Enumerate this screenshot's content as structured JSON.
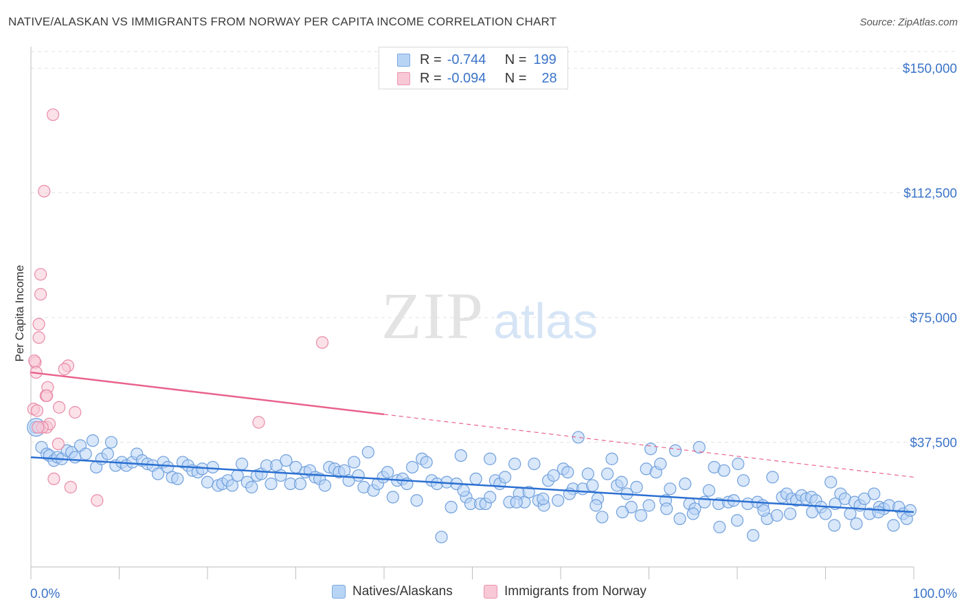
{
  "header": {
    "title": "NATIVE/ALASKAN VS IMMIGRANTS FROM NORWAY PER CAPITA INCOME CORRELATION CHART",
    "source": "Source: ZipAtlas.com"
  },
  "watermark": {
    "zip": "ZIP",
    "atlas": "atlas"
  },
  "stats": {
    "rows": [
      {
        "r_label": "R =",
        "r_value": "-0.744",
        "n_label": "N =",
        "n_value": "199"
      },
      {
        "r_label": "R =",
        "r_value": "-0.094",
        "n_label": "N =",
        "n_value": "28"
      }
    ]
  },
  "legend": {
    "items": [
      "Natives/Alaskans",
      "Immigrants from Norway"
    ]
  },
  "colors": {
    "blue_fill": "#b8d4f5",
    "blue_stroke": "#6f9fdc",
    "blue_line": "#2a6fd1",
    "pink_fill": "#f8c8d6",
    "pink_stroke": "#e98aa8",
    "pink_line": "#e8628c",
    "tick_label": "#3a73c8",
    "grid": "#e2e2e2"
  },
  "chart_data": {
    "type": "scatter",
    "title": "NATIVE/ALASKAN VS IMMIGRANTS FROM NORWAY PER CAPITA INCOME CORRELATION CHART",
    "xlabel": "",
    "ylabel": "Per Capita Income",
    "xlim": [
      0,
      100
    ],
    "ylim": [
      0,
      155000
    ],
    "x_tick_labels": [
      "0.0%",
      "100.0%"
    ],
    "y_ticks": [
      37500,
      75000,
      112500,
      150000
    ],
    "y_tick_labels": [
      "$37,500",
      "$75,000",
      "$112,500",
      "$150,000"
    ],
    "grid": true,
    "legend_position": "bottom",
    "series": [
      {
        "name": "Natives/Alaskans",
        "trend": {
          "x": [
            0,
            100
          ],
          "y": [
            33000,
            16500
          ],
          "dashed_from": null
        },
        "points": [
          [
            0.5,
            42000
          ],
          [
            1.2,
            36000
          ],
          [
            1.8,
            34000
          ],
          [
            2.1,
            33500
          ],
          [
            2.6,
            32000
          ],
          [
            3.0,
            33000
          ],
          [
            3.5,
            32500
          ],
          [
            4.1,
            35000
          ],
          [
            4.6,
            34500
          ],
          [
            5.0,
            33000
          ],
          [
            5.6,
            36500
          ],
          [
            6.2,
            34000
          ],
          [
            7.0,
            38000
          ],
          [
            7.4,
            30000
          ],
          [
            8.0,
            32500
          ],
          [
            8.7,
            34000
          ],
          [
            9.1,
            37500
          ],
          [
            9.6,
            30500
          ],
          [
            10.3,
            31500
          ],
          [
            10.8,
            30500
          ],
          [
            11.5,
            31500
          ],
          [
            12.0,
            34000
          ],
          [
            12.6,
            32000
          ],
          [
            13.2,
            31000
          ],
          [
            13.8,
            30500
          ],
          [
            14.4,
            28000
          ],
          [
            15.0,
            31500
          ],
          [
            15.5,
            30000
          ],
          [
            16.0,
            27000
          ],
          [
            16.6,
            26500
          ],
          [
            17.2,
            31500
          ],
          [
            17.8,
            30500
          ],
          [
            18.3,
            29000
          ],
          [
            18.9,
            28500
          ],
          [
            19.4,
            29500
          ],
          [
            20.0,
            25500
          ],
          [
            20.6,
            30000
          ],
          [
            21.2,
            24500
          ],
          [
            21.7,
            25000
          ],
          [
            22.3,
            26000
          ],
          [
            22.8,
            24500
          ],
          [
            23.4,
            27500
          ],
          [
            23.9,
            31000
          ],
          [
            24.5,
            25500
          ],
          [
            25.0,
            24000
          ],
          [
            25.6,
            27500
          ],
          [
            26.1,
            28000
          ],
          [
            26.7,
            30500
          ],
          [
            27.2,
            25000
          ],
          [
            27.8,
            30500
          ],
          [
            28.3,
            27500
          ],
          [
            28.9,
            32000
          ],
          [
            29.4,
            25000
          ],
          [
            30.0,
            30000
          ],
          [
            30.5,
            25000
          ],
          [
            31.1,
            28500
          ],
          [
            31.6,
            29000
          ],
          [
            32.2,
            27000
          ],
          [
            32.7,
            26500
          ],
          [
            33.3,
            24500
          ],
          [
            33.8,
            30000
          ],
          [
            34.4,
            29500
          ],
          [
            34.9,
            28500
          ],
          [
            35.5,
            29000
          ],
          [
            36.0,
            26000
          ],
          [
            36.6,
            31500
          ],
          [
            37.1,
            27500
          ],
          [
            37.7,
            24000
          ],
          [
            38.2,
            34500
          ],
          [
            38.8,
            23000
          ],
          [
            39.3,
            25000
          ],
          [
            39.9,
            27000
          ],
          [
            40.4,
            28500
          ],
          [
            41.0,
            21000
          ],
          [
            41.5,
            26000
          ],
          [
            42.1,
            26500
          ],
          [
            42.6,
            25000
          ],
          [
            43.2,
            30000
          ],
          [
            43.7,
            20000
          ],
          [
            44.3,
            32500
          ],
          [
            44.8,
            31500
          ],
          [
            45.4,
            26000
          ],
          [
            46.0,
            25000
          ],
          [
            46.5,
            9000
          ],
          [
            47.1,
            25500
          ],
          [
            47.6,
            18000
          ],
          [
            48.2,
            25000
          ],
          [
            48.7,
            33500
          ],
          [
            49.3,
            21000
          ],
          [
            49.8,
            19000
          ],
          [
            50.4,
            26500
          ],
          [
            50.9,
            19000
          ],
          [
            51.5,
            19000
          ],
          [
            52.0,
            32500
          ],
          [
            52.6,
            26000
          ],
          [
            53.1,
            25000
          ],
          [
            53.7,
            27000
          ],
          [
            54.2,
            19500
          ],
          [
            54.8,
            31000
          ],
          [
            55.3,
            22000
          ],
          [
            55.9,
            19500
          ],
          [
            56.4,
            22500
          ],
          [
            57.0,
            31000
          ],
          [
            57.5,
            20000
          ],
          [
            58.1,
            18500
          ],
          [
            58.6,
            26000
          ],
          [
            59.2,
            27500
          ],
          [
            59.7,
            20000
          ],
          [
            60.3,
            29500
          ],
          [
            60.8,
            28500
          ],
          [
            61.4,
            23500
          ],
          [
            62.0,
            39000
          ],
          [
            62.5,
            23500
          ],
          [
            63.1,
            28000
          ],
          [
            63.6,
            24500
          ],
          [
            64.2,
            20500
          ],
          [
            64.7,
            15000
          ],
          [
            65.3,
            28000
          ],
          [
            65.8,
            32500
          ],
          [
            66.4,
            24500
          ],
          [
            66.9,
            25500
          ],
          [
            67.5,
            22000
          ],
          [
            68.0,
            18000
          ],
          [
            68.6,
            24000
          ],
          [
            69.1,
            15500
          ],
          [
            69.7,
            29500
          ],
          [
            70.2,
            35500
          ],
          [
            70.8,
            28500
          ],
          [
            71.3,
            31000
          ],
          [
            71.9,
            20000
          ],
          [
            72.4,
            23500
          ],
          [
            73.0,
            35000
          ],
          [
            73.5,
            14500
          ],
          [
            74.1,
            25000
          ],
          [
            74.6,
            19000
          ],
          [
            75.2,
            17500
          ],
          [
            75.7,
            36000
          ],
          [
            76.3,
            19500
          ],
          [
            76.8,
            23000
          ],
          [
            77.4,
            30000
          ],
          [
            77.9,
            19000
          ],
          [
            78.5,
            29000
          ],
          [
            79.0,
            19500
          ],
          [
            79.6,
            20000
          ],
          [
            80.1,
            31000
          ],
          [
            80.7,
            26000
          ],
          [
            81.2,
            19000
          ],
          [
            81.8,
            9500
          ],
          [
            82.3,
            19500
          ],
          [
            82.9,
            18500
          ],
          [
            83.4,
            14500
          ],
          [
            84.0,
            27000
          ],
          [
            84.5,
            15500
          ],
          [
            85.1,
            21000
          ],
          [
            85.6,
            22000
          ],
          [
            86.2,
            20500
          ],
          [
            86.7,
            20000
          ],
          [
            87.3,
            21500
          ],
          [
            87.8,
            20500
          ],
          [
            88.4,
            21000
          ],
          [
            88.9,
            20000
          ],
          [
            89.5,
            18000
          ],
          [
            90.0,
            16000
          ],
          [
            90.6,
            25500
          ],
          [
            91.1,
            19000
          ],
          [
            91.7,
            22000
          ],
          [
            92.2,
            20500
          ],
          [
            92.8,
            16000
          ],
          [
            93.3,
            19500
          ],
          [
            93.9,
            18500
          ],
          [
            94.4,
            20500
          ],
          [
            95.0,
            16000
          ],
          [
            95.5,
            22000
          ],
          [
            96.1,
            18000
          ],
          [
            96.6,
            17500
          ],
          [
            97.2,
            18500
          ],
          [
            97.7,
            12500
          ],
          [
            98.3,
            18000
          ],
          [
            98.8,
            16000
          ],
          [
            99.2,
            14500
          ],
          [
            99.6,
            17000
          ],
          [
            96.0,
            16500
          ],
          [
            93.5,
            13000
          ],
          [
            91.0,
            12500
          ],
          [
            88.5,
            16500
          ],
          [
            86.0,
            16000
          ],
          [
            83.0,
            17000
          ],
          [
            80.0,
            14000
          ],
          [
            78.0,
            12000
          ],
          [
            75.0,
            16000
          ],
          [
            72.0,
            17500
          ],
          [
            70.0,
            18500
          ],
          [
            67.0,
            16500
          ],
          [
            64.0,
            18500
          ],
          [
            61.0,
            22000
          ],
          [
            58.0,
            20500
          ],
          [
            55.0,
            19500
          ],
          [
            52.0,
            21000
          ],
          [
            49.0,
            23000
          ]
        ]
      },
      {
        "name": "Immigrants from Norway",
        "trend": {
          "x": [
            0,
            100
          ],
          "y": [
            58500,
            27000
          ],
          "dashed_from": 40
        },
        "points": [
          [
            2.5,
            136000
          ],
          [
            1.5,
            113000
          ],
          [
            1.1,
            88000
          ],
          [
            1.1,
            82000
          ],
          [
            0.9,
            73000
          ],
          [
            0.9,
            69000
          ],
          [
            0.5,
            61500
          ],
          [
            0.4,
            62000
          ],
          [
            0.6,
            58500
          ],
          [
            1.9,
            54000
          ],
          [
            1.7,
            51500
          ],
          [
            1.8,
            51500
          ],
          [
            0.3,
            47500
          ],
          [
            0.7,
            47000
          ],
          [
            3.2,
            48000
          ],
          [
            5.0,
            46500
          ],
          [
            4.2,
            60500
          ],
          [
            3.8,
            59500
          ],
          [
            33.0,
            67500
          ],
          [
            25.8,
            43500
          ],
          [
            1.8,
            42000
          ],
          [
            2.1,
            43000
          ],
          [
            3.1,
            37000
          ],
          [
            2.6,
            26500
          ],
          [
            4.5,
            24000
          ],
          [
            7.5,
            20000
          ],
          [
            1.3,
            42000
          ],
          [
            0.8,
            42000
          ]
        ]
      }
    ]
  }
}
